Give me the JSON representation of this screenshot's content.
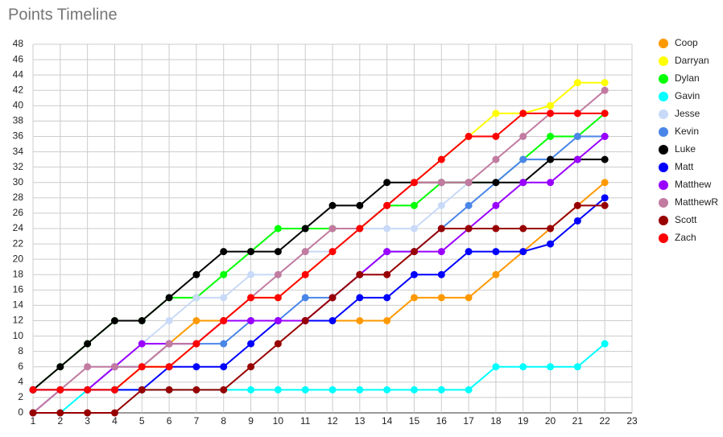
{
  "chart_data": {
    "type": "line",
    "title": "Points Timeline",
    "x": [
      1,
      2,
      3,
      4,
      5,
      6,
      7,
      8,
      9,
      10,
      11,
      12,
      13,
      14,
      15,
      16,
      17,
      18,
      19,
      20,
      21,
      22
    ],
    "xlim": [
      1,
      23
    ],
    "xticks": [
      1,
      2,
      3,
      4,
      5,
      6,
      7,
      8,
      9,
      10,
      11,
      12,
      13,
      14,
      15,
      16,
      17,
      18,
      19,
      20,
      21,
      22,
      23
    ],
    "ylim": [
      0,
      48
    ],
    "yticks": [
      0,
      2,
      4,
      6,
      8,
      10,
      12,
      14,
      16,
      18,
      20,
      22,
      24,
      26,
      28,
      30,
      32,
      34,
      36,
      38,
      40,
      42,
      44,
      46,
      48
    ],
    "grid": true,
    "legend": "right",
    "series": [
      {
        "name": "Coop",
        "color": "#ff9900",
        "values": [
          3,
          3,
          3,
          3,
          6,
          9,
          12,
          12,
          12,
          12,
          12,
          12,
          12,
          12,
          15,
          15,
          15,
          18,
          21,
          24,
          27,
          30
        ]
      },
      {
        "name": "Darryan",
        "color": "#ffff00",
        "values": [
          3,
          3,
          3,
          3,
          6,
          6,
          9,
          12,
          15,
          15,
          18,
          21,
          24,
          27,
          30,
          33,
          36,
          39,
          39,
          40,
          43,
          43
        ]
      },
      {
        "name": "Dylan",
        "color": "#00ff00",
        "values": [
          3,
          6,
          9,
          12,
          12,
          15,
          15,
          18,
          21,
          24,
          24,
          24,
          24,
          27,
          27,
          30,
          30,
          30,
          33,
          36,
          36,
          39
        ]
      },
      {
        "name": "Gavin",
        "color": "#00ffff",
        "values": [
          0,
          0,
          3,
          3,
          3,
          3,
          3,
          3,
          3,
          3,
          3,
          3,
          3,
          3,
          3,
          3,
          3,
          6,
          6,
          6,
          6,
          9
        ]
      },
      {
        "name": "Jesse",
        "color": "#c9daf8",
        "values": [
          0,
          3,
          6,
          6,
          9,
          12,
          15,
          15,
          18,
          18,
          21,
          21,
          24,
          24,
          24,
          27,
          30,
          30,
          33,
          33,
          36,
          36
        ]
      },
      {
        "name": "Kevin",
        "color": "#4a86e8",
        "values": [
          3,
          3,
          3,
          6,
          6,
          9,
          9,
          9,
          12,
          12,
          15,
          15,
          18,
          21,
          21,
          24,
          27,
          30,
          33,
          33,
          36,
          36
        ]
      },
      {
        "name": "Luke",
        "color": "#000000",
        "values": [
          3,
          6,
          9,
          12,
          12,
          15,
          18,
          21,
          21,
          21,
          24,
          27,
          27,
          30,
          30,
          30,
          30,
          30,
          30,
          33,
          33,
          33
        ]
      },
      {
        "name": "Matt",
        "color": "#0000ff",
        "values": [
          3,
          3,
          3,
          3,
          3,
          6,
          6,
          6,
          9,
          12,
          12,
          12,
          15,
          15,
          18,
          18,
          21,
          21,
          21,
          22,
          25,
          28
        ]
      },
      {
        "name": "Matthew",
        "color": "#9900ff",
        "values": [
          0,
          3,
          3,
          6,
          9,
          9,
          9,
          12,
          12,
          12,
          12,
          15,
          18,
          21,
          21,
          21,
          24,
          27,
          30,
          30,
          33,
          36
        ]
      },
      {
        "name": "MatthewR",
        "color": "#c27ba0",
        "values": [
          0,
          3,
          6,
          6,
          6,
          9,
          9,
          12,
          15,
          18,
          21,
          24,
          24,
          27,
          30,
          30,
          30,
          33,
          36,
          39,
          39,
          42
        ]
      },
      {
        "name": "Scott",
        "color": "#980000",
        "values": [
          0,
          0,
          0,
          0,
          3,
          3,
          3,
          3,
          6,
          9,
          12,
          15,
          18,
          18,
          21,
          24,
          24,
          24,
          24,
          24,
          27,
          27
        ]
      },
      {
        "name": "Zach",
        "color": "#ff0000",
        "values": [
          3,
          3,
          3,
          3,
          6,
          6,
          9,
          12,
          15,
          15,
          18,
          21,
          24,
          27,
          30,
          33,
          36,
          36,
          39,
          39,
          39,
          39
        ]
      }
    ]
  }
}
